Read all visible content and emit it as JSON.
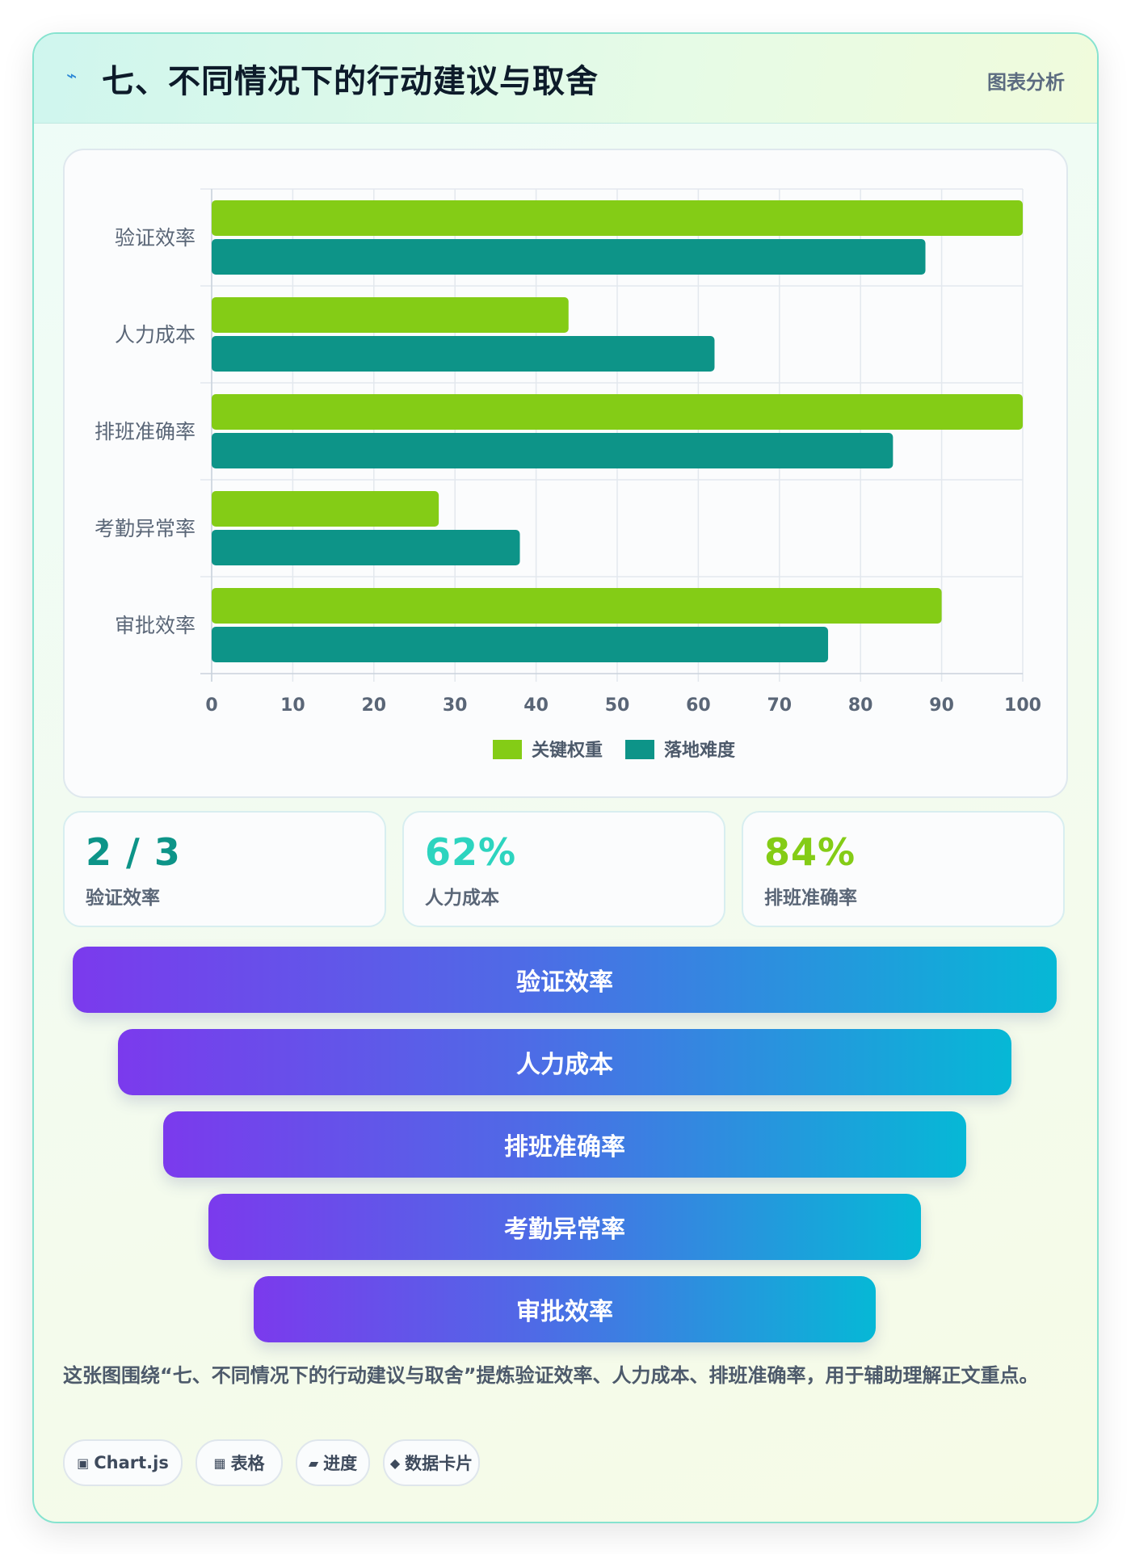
{
  "header": {
    "icon": "lightning-icon",
    "title": "七、不同情况下的行动建议与取舍",
    "tag": "图表分析"
  },
  "chart_data": {
    "type": "bar",
    "orientation": "horizontal",
    "categories": [
      "验证效率",
      "人力成本",
      "排班准确率",
      "考勤异常率",
      "审批效率"
    ],
    "series": [
      {
        "name": "关键权重",
        "values": [
          100,
          44,
          100,
          28,
          90
        ],
        "color": "#84cc16"
      },
      {
        "name": "落地难度",
        "values": [
          88,
          62,
          84,
          38,
          76
        ],
        "color": "#0d9488"
      }
    ],
    "xlim": [
      0,
      100
    ],
    "xticks": [
      0,
      10,
      20,
      30,
      40,
      50,
      60,
      70,
      80,
      90,
      100
    ],
    "grid": true,
    "legend": "bottom"
  },
  "stats": [
    {
      "value": "2 / 3",
      "label": "验证效率",
      "color": "#0d9488"
    },
    {
      "value": "62%",
      "label": "人力成本",
      "color": "#2dd4bf"
    },
    {
      "value": "84%",
      "label": "排班准确率",
      "color": "#84cc16"
    }
  ],
  "funnel": [
    "验证效率",
    "人力成本",
    "排班准确率",
    "考勤异常率",
    "审批效率"
  ],
  "description": "这张图围绕“七、不同情况下的行动建议与取舍”提炼验证效率、人力成本、排班准确率，用于辅助理解正文重点。",
  "chips": [
    {
      "icon": "▣",
      "label": "Chart.js"
    },
    {
      "icon": "▦",
      "label": "表格"
    },
    {
      "icon": "▰",
      "label": "进度"
    },
    {
      "icon": "◆",
      "label": "数据卡片"
    }
  ]
}
